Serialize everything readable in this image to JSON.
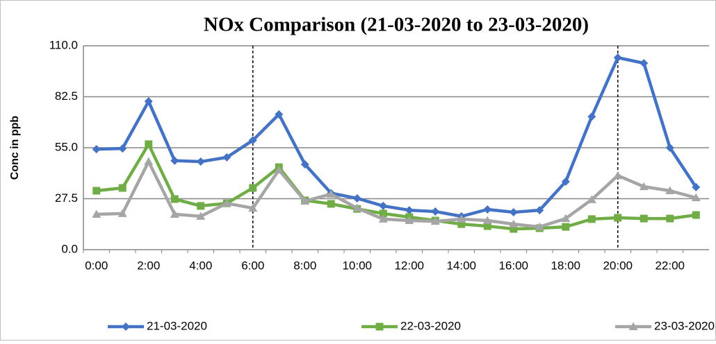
{
  "chart_data": {
    "type": "line",
    "title": "NOx Comparison (21-03-2020 to 23-03-2020)",
    "y_label": "Conc in ppb",
    "categories": [
      "0:00",
      null,
      "2:00",
      null,
      "4:00",
      null,
      "6:00",
      null,
      "8:00",
      null,
      "10:00",
      null,
      "12:00",
      null,
      "14:00",
      null,
      "16:00",
      null,
      "18:00",
      null,
      "20:00",
      null,
      "22:00",
      null
    ],
    "series": [
      {
        "name": "21-03-2020",
        "color": "#4472c4",
        "marker": "diamond",
        "values": [
          54.2,
          54.6,
          80,
          48,
          47.5,
          49.8,
          59,
          73,
          46,
          30.5,
          27.7,
          23.6,
          21.3,
          20.6,
          18,
          21.7,
          20.2,
          21.3,
          36.7,
          71.8,
          103.6,
          100.6,
          55,
          33.7
        ]
      },
      {
        "name": "22-03-2020",
        "color": "#70ad47",
        "marker": "square",
        "values": [
          31.8,
          33.3,
          56.9,
          27.3,
          23.6,
          25,
          33.3,
          44.5,
          26.6,
          24.7,
          22,
          19.5,
          17.6,
          15.7,
          13.8,
          12.7,
          11.2,
          11.6,
          12.3,
          16.5,
          17.2,
          16.8,
          16.8,
          18.7
        ]
      },
      {
        "name": "23-03-2020",
        "color": "#a5a5a5",
        "marker": "triangle",
        "values": [
          19.1,
          19.5,
          47.5,
          19.1,
          18,
          25,
          22.4,
          43,
          26.2,
          30,
          22.4,
          16.5,
          15.7,
          15.3,
          16.5,
          15.7,
          13.8,
          12.3,
          16.8,
          27,
          40,
          34,
          31.8,
          28
        ]
      }
    ],
    "ylim": [
      0,
      110
    ],
    "yticks": [
      {
        "value": 0,
        "label": "0.0"
      },
      {
        "value": 27.5,
        "label": "27.5"
      },
      {
        "value": 55,
        "label": "55.0"
      },
      {
        "value": 82.5,
        "label": "82.5"
      },
      {
        "value": 110,
        "label": "110.0"
      }
    ],
    "grid": true,
    "dashed_lines_at": [
      "6:00",
      "20:00"
    ],
    "legend": "bottom"
  }
}
